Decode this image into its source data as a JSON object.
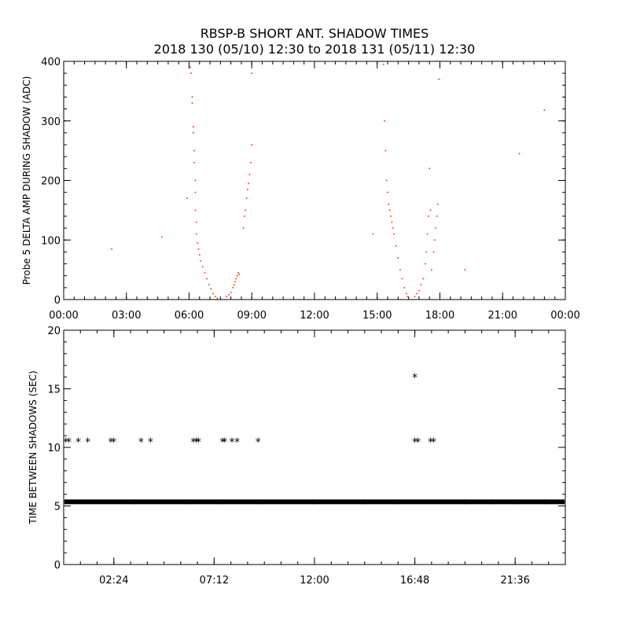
{
  "title_line1": "RBSP-B SHORT ANT. SHADOW TIMES",
  "title_line2": "2018 130 (05/10) 12:30 to 2018 131 (05/11) 12:30",
  "chart_data": [
    {
      "type": "scatter",
      "ylabel": "Probe 5 DELTA AMP DURING SHADOW (ADC)",
      "xlim": [
        0,
        24
      ],
      "ylim": [
        0,
        400
      ],
      "x_tick_values": [
        0,
        3,
        6,
        9,
        12,
        15,
        18,
        21,
        24
      ],
      "x_tick_labels": [
        "00:00",
        "03:00",
        "06:00",
        "09:00",
        "12:00",
        "15:00",
        "18:00",
        "21:00",
        "00:00"
      ],
      "y_tick_values": [
        0,
        100,
        200,
        300,
        400
      ],
      "y_tick_labels": [
        "0",
        "100",
        "200",
        "300",
        "400"
      ],
      "marker_color": "#ff2200",
      "series": [
        {
          "points": [
            [
              2.3,
              85
            ],
            [
              4.7,
              105
            ],
            [
              5.9,
              170
            ],
            [
              6.05,
              390
            ],
            [
              6.1,
              380
            ],
            [
              6.15,
              340
            ],
            [
              6.15,
              330
            ],
            [
              6.2,
              290
            ],
            [
              6.2,
              280
            ],
            [
              6.25,
              250
            ],
            [
              6.25,
              230
            ],
            [
              6.3,
              200
            ],
            [
              6.3,
              180
            ],
            [
              6.3,
              150
            ],
            [
              6.35,
              130
            ],
            [
              6.35,
              110
            ],
            [
              6.4,
              95
            ],
            [
              6.45,
              85
            ],
            [
              6.5,
              75
            ],
            [
              6.55,
              65
            ],
            [
              6.65,
              55
            ],
            [
              6.75,
              45
            ],
            [
              6.85,
              35
            ],
            [
              6.95,
              25
            ],
            [
              7.05,
              18
            ],
            [
              7.15,
              10
            ],
            [
              7.25,
              5
            ],
            [
              7.35,
              2
            ],
            [
              7.8,
              5
            ],
            [
              7.9,
              8
            ],
            [
              8.0,
              12
            ],
            [
              8.1,
              20
            ],
            [
              8.15,
              25
            ],
            [
              8.2,
              30
            ],
            [
              8.25,
              35
            ],
            [
              8.3,
              40
            ],
            [
              8.35,
              45
            ],
            [
              8.4,
              42
            ],
            [
              8.6,
              120
            ],
            [
              8.65,
              140
            ],
            [
              8.7,
              150
            ],
            [
              8.75,
              170
            ],
            [
              8.8,
              185
            ],
            [
              8.85,
              195
            ],
            [
              8.9,
              210
            ],
            [
              8.95,
              230
            ],
            [
              9.0,
              260
            ],
            [
              9.0,
              380
            ],
            [
              14.8,
              110
            ],
            [
              15.3,
              395
            ],
            [
              15.35,
              300
            ],
            [
              15.4,
              250
            ],
            [
              15.45,
              200
            ],
            [
              15.5,
              180
            ],
            [
              15.55,
              160
            ],
            [
              15.6,
              150
            ],
            [
              15.65,
              140
            ],
            [
              15.7,
              130
            ],
            [
              15.75,
              120
            ],
            [
              15.8,
              110
            ],
            [
              15.9,
              90
            ],
            [
              16.0,
              70
            ],
            [
              16.1,
              50
            ],
            [
              16.2,
              35
            ],
            [
              16.3,
              20
            ],
            [
              16.4,
              10
            ],
            [
              16.45,
              5
            ],
            [
              16.8,
              5
            ],
            [
              16.9,
              10
            ],
            [
              17.0,
              15
            ],
            [
              17.1,
              25
            ],
            [
              17.2,
              35
            ],
            [
              17.3,
              60
            ],
            [
              17.35,
              80
            ],
            [
              17.4,
              110
            ],
            [
              17.45,
              140
            ],
            [
              17.5,
              220
            ],
            [
              17.55,
              150
            ],
            [
              17.6,
              50
            ],
            [
              17.7,
              80
            ],
            [
              17.75,
              100
            ],
            [
              17.8,
              120
            ],
            [
              17.85,
              140
            ],
            [
              17.9,
              160
            ],
            [
              17.95,
              370
            ],
            [
              19.2,
              50
            ],
            [
              21.8,
              245
            ],
            [
              23.0,
              318
            ]
          ]
        }
      ]
    },
    {
      "type": "scatter",
      "ylabel": "TIME BETWEEN SHADOWS (SEC)",
      "xlim": [
        0,
        24
      ],
      "ylim": [
        0,
        20
      ],
      "x_tick_values": [
        2.4,
        7.2,
        12.0,
        16.8,
        21.6
      ],
      "x_tick_labels": [
        "02:24",
        "07:12",
        "12:00",
        "16:48",
        "21:36"
      ],
      "y_tick_values": [
        0,
        5,
        10,
        15,
        20
      ],
      "y_tick_labels": [
        "0",
        "5",
        "10",
        "15",
        "20"
      ],
      "marker_symbol": "*",
      "marker_color": "#000000",
      "baseline_value": 5.35,
      "series": [
        {
          "points": [
            [
              0.1,
              10.6
            ],
            [
              0.25,
              10.6
            ],
            [
              0.7,
              10.6
            ],
            [
              1.15,
              10.6
            ],
            [
              2.25,
              10.6
            ],
            [
              2.4,
              10.6
            ],
            [
              3.7,
              10.6
            ],
            [
              4.15,
              10.6
            ],
            [
              6.2,
              10.6
            ],
            [
              6.35,
              10.6
            ],
            [
              6.45,
              10.6
            ],
            [
              7.6,
              10.6
            ],
            [
              7.7,
              10.6
            ],
            [
              8.05,
              10.6
            ],
            [
              8.3,
              10.6
            ],
            [
              9.3,
              10.6
            ],
            [
              16.8,
              16.1
            ],
            [
              16.8,
              10.6
            ],
            [
              16.95,
              10.6
            ],
            [
              17.55,
              10.6
            ],
            [
              17.7,
              10.6
            ],
            [
              0.1,
              5.35
            ],
            [
              2.3,
              5.35
            ],
            [
              3.4,
              5.35
            ],
            [
              4.6,
              5.35
            ],
            [
              5.9,
              5.35
            ],
            [
              7.6,
              5.35
            ],
            [
              9.3,
              5.35
            ],
            [
              11.9,
              5.35
            ],
            [
              14.4,
              5.35
            ],
            [
              15.8,
              5.35
            ],
            [
              16.85,
              5.35
            ],
            [
              19.2,
              5.35
            ],
            [
              20.5,
              5.35
            ],
            [
              21.7,
              5.35
            ],
            [
              23.0,
              5.35
            ],
            [
              23.9,
              5.35
            ]
          ]
        }
      ]
    }
  ]
}
